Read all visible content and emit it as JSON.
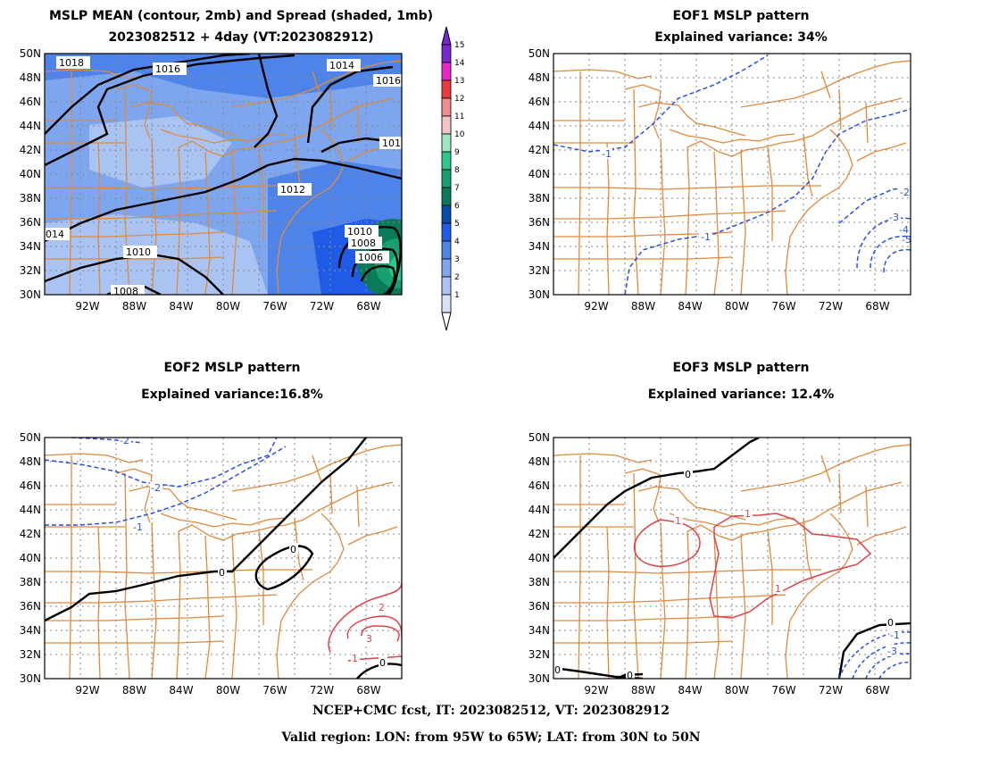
{
  "panels": {
    "mean": {
      "title_line1": "MSLP MEAN (contour, 2mb) and Spread (shaded, 1mb)",
      "title_line2": "2023082512 + 4day (VT:2023082912)",
      "contour_labels": [
        "1018",
        "1016",
        "1014",
        "1016",
        "101",
        "1012",
        "1010",
        "1008",
        "1006",
        "014",
        "1010",
        "1008"
      ]
    },
    "eof1": {
      "title_line1": "EOF1 MSLP pattern",
      "title_line2": "Explained variance: 34%",
      "contour_labels": [
        "-1",
        "-1",
        "-2",
        "-3",
        "-4",
        "-5"
      ]
    },
    "eof2": {
      "title_line1": "EOF2 MSLP pattern",
      "title_line2": "Explained variance:16.8%",
      "contour_labels": [
        "-2",
        "-2",
        "-1",
        "0",
        "0",
        "2",
        "3",
        "1",
        "0"
      ]
    },
    "eof3": {
      "title_line1": "EOF3 MSLP pattern",
      "title_line2": "Explained variance: 12.4%",
      "contour_labels": [
        "0",
        "1",
        "1",
        "1",
        "0",
        "0",
        "0",
        "-1",
        "-3"
      ]
    }
  },
  "axes": {
    "lat_labels": [
      "50N",
      "48N",
      "46N",
      "44N",
      "42N",
      "40N",
      "38N",
      "36N",
      "34N",
      "32N",
      "30N"
    ],
    "lon_labels": [
      "92W",
      "88W",
      "84W",
      "80W",
      "76W",
      "72W",
      "68W"
    ]
  },
  "colorbar": {
    "labels": [
      "1",
      "2",
      "3",
      "4",
      "5",
      "6",
      "7",
      "8",
      "9",
      "10",
      "11",
      "12",
      "13",
      "14",
      "15"
    ],
    "colors": [
      "#d6e3f7",
      "#a9c4f2",
      "#7ea6ee",
      "#4e84ea",
      "#1f5be4",
      "#0a4bb0",
      "#0a7a5a",
      "#16a070",
      "#2cc88c",
      "#9ee6c0",
      "#f2c4c4",
      "#f08e8e",
      "#e83c3c",
      "#e828c8",
      "#7a28d0"
    ]
  },
  "colors": {
    "land": "#e08a3c",
    "contour": "#000000",
    "negative": "#2a4fe0",
    "positive": "#e0404a",
    "grid": "#888888"
  },
  "footer": {
    "line1": "NCEP+CMC fcst, IT: 2023082512, VT: 2023082912",
    "line2": "Valid region: LON: from 95W to 65W; LAT: from 30N to 50N"
  }
}
